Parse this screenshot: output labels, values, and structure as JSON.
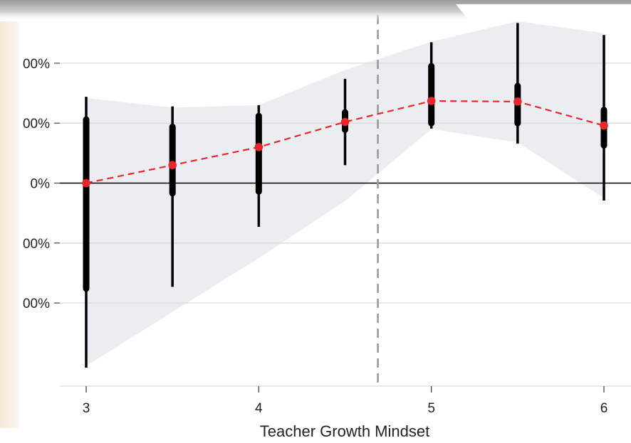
{
  "chart_data": {
    "type": "scatter",
    "title": "",
    "xlabel": "Teacher Growth Mindset",
    "ylabel": "",
    "x_ticks": [
      "3",
      "4",
      "5",
      "6"
    ],
    "y_ticks": [
      {
        "value": 20,
        "label": "00%"
      },
      {
        "value": 10,
        "label": "00%"
      },
      {
        "value": 0,
        "label": "0%"
      },
      {
        "value": -10,
        "label": "00%"
      },
      {
        "value": -20,
        "label": "00%"
      }
    ],
    "xlim": [
      2.85,
      6.15
    ],
    "ylim": [
      -34,
      27
    ],
    "reference_line_y": 0,
    "vertical_dashed_line_x": 4.69,
    "grid": "horizontal",
    "points": [
      {
        "x": 3.0,
        "y": 0.0,
        "ci_inner": [
          -17.6,
          10.6
        ],
        "ci_outer": [
          -30.8,
          14.4
        ]
      },
      {
        "x": 3.5,
        "y": 3.0,
        "ci_inner": [
          -1.7,
          9.4
        ],
        "ci_outer": [
          -17.3,
          12.8
        ]
      },
      {
        "x": 4.0,
        "y": 6.0,
        "ci_inner": [
          -1.4,
          11.2
        ],
        "ci_outer": [
          -7.3,
          13.0
        ]
      },
      {
        "x": 4.5,
        "y": 10.2,
        "ci_inner": [
          8.9,
          11.8
        ],
        "ci_outer": [
          3.0,
          17.4
        ]
      },
      {
        "x": 5.0,
        "y": 13.7,
        "ci_inner": [
          10.0,
          19.5
        ],
        "ci_outer": [
          9.1,
          23.5
        ]
      },
      {
        "x": 5.5,
        "y": 13.6,
        "ci_inner": [
          10.0,
          16.2
        ],
        "ci_outer": [
          6.6,
          26.7
        ]
      },
      {
        "x": 6.0,
        "y": 9.6,
        "ci_inner": [
          6.3,
          12.2
        ],
        "ci_outer": [
          -2.9,
          24.7
        ]
      }
    ],
    "band": {
      "x": [
        3.0,
        3.5,
        4.0,
        4.5,
        5.0,
        5.5,
        6.0
      ],
      "upper": [
        14.2,
        12.6,
        13.0,
        18.9,
        23.6,
        27.0,
        25.0
      ],
      "lower": [
        -30.5,
        -21.5,
        -12.5,
        -3.0,
        9.0,
        6.8,
        -2.5
      ]
    },
    "colors": {
      "band": "#ebedf0",
      "grid": "#d8dadd",
      "bars": "#000000",
      "points": "#e8262b",
      "trend_line": "#e8262b",
      "zero_line": "#000000",
      "vertical_line": "#9a9a9a"
    }
  }
}
